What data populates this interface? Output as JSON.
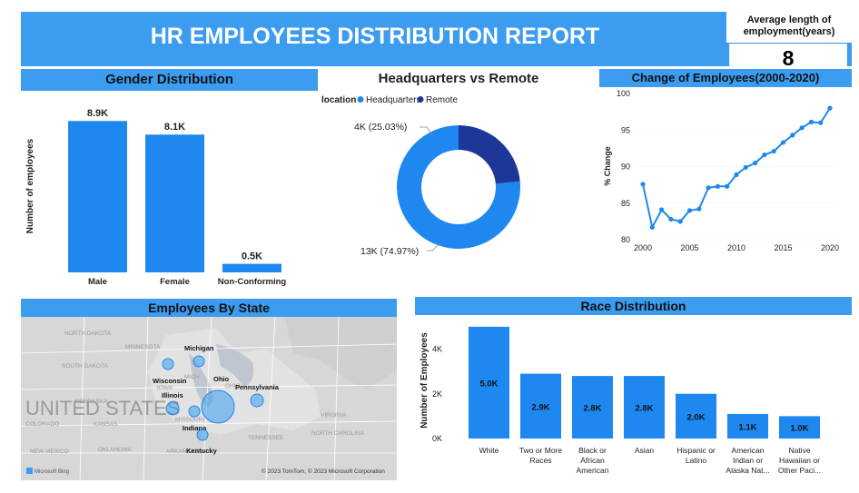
{
  "header": {
    "title": "HR EMPLOYEES DISTRIBUTION REPORT",
    "kpi_label": "Average length of employment(years)",
    "kpi_value": "8"
  },
  "colors": {
    "primary": "#3b9cf0",
    "bar": "#1e88f0",
    "dark": "#1c3797",
    "map_bg": "#d9d9d9"
  },
  "chart_data": [
    {
      "id": "gender",
      "type": "bar",
      "title": "Gender Distribution",
      "ylabel": "Number of employees",
      "categories": [
        "Male",
        "Female",
        "Non-Conforming"
      ],
      "values": [
        8.9,
        8.1,
        0.5
      ],
      "labels": [
        "8.9K",
        "8.1K",
        "0.5K"
      ],
      "ylim": [
        0,
        9.5
      ]
    },
    {
      "id": "location",
      "type": "pie",
      "title": "Headquarters vs Remote",
      "legend_title": "location",
      "categories": [
        "Headquarters",
        "Remote"
      ],
      "values": [
        13,
        4
      ],
      "labels": [
        "13K (74.97%)",
        "4K (25.03%)"
      ],
      "percents": [
        74.97,
        25.03
      ]
    },
    {
      "id": "change",
      "type": "line",
      "title": "Change of Employees(2000-2020)",
      "ylabel": "% Change",
      "x": [
        2000,
        2001,
        2002,
        2003,
        2004,
        2005,
        2006,
        2007,
        2008,
        2009,
        2010,
        2011,
        2012,
        2013,
        2014,
        2015,
        2016,
        2017,
        2018,
        2019,
        2020
      ],
      "values": [
        87.6,
        81.7,
        84.1,
        82.8,
        82.5,
        84.0,
        84.2,
        87.1,
        87.3,
        87.3,
        88.9,
        89.9,
        90.5,
        91.6,
        92.1,
        93.3,
        94.3,
        95.3,
        96.1,
        96.0,
        98.0
      ],
      "xticks": [
        2000,
        2005,
        2010,
        2015,
        2020
      ],
      "yticks": [
        80,
        85,
        90,
        95,
        100
      ],
      "ylim": [
        80,
        100
      ]
    },
    {
      "id": "race",
      "type": "bar",
      "title": "Race Distribution",
      "ylabel": "Number of Employees",
      "categories": [
        [
          "White"
        ],
        [
          "Two or More",
          "Races"
        ],
        [
          "Black or",
          "African",
          "American"
        ],
        [
          "Asian"
        ],
        [
          "Hispanic or",
          "Latino"
        ],
        [
          "American",
          "Indian or",
          "Alaska Nat..."
        ],
        [
          "Native",
          "Hawaiian or",
          "Other Paci..."
        ]
      ],
      "values": [
        5.0,
        2.9,
        2.8,
        2.8,
        2.0,
        1.1,
        1.0
      ],
      "labels": [
        "5.0K",
        "2.9K",
        "2.8K",
        "2.8K",
        "2.0K",
        "1.1K",
        "1.0K"
      ],
      "yticks": [
        "0K",
        "2K",
        "4K"
      ],
      "ylim": [
        0,
        5.2
      ]
    }
  ],
  "map": {
    "title": "Employees By State",
    "country_label": "UNITED STATES",
    "states": [
      "Michigan",
      "Wisconsin",
      "Ohio",
      "Illinois",
      "Pennsylvania",
      "Indiana",
      "Kentucky"
    ],
    "bg_labels": [
      "NORTH DAKOTA",
      "MINNESOTA",
      "SOUTH DAKOTA",
      "IOWA",
      "NEBRASKA",
      "KANSAS",
      "COLORADO",
      "MISSOURI",
      "OKLAHOMA",
      "ARKANSAS",
      "TENNESSEE",
      "NEW MEXICO",
      "MICH",
      "OHIO",
      "VIRGINIA",
      "NORTH CAROLINA"
    ],
    "attribution": "© 2023 TomTom, © 2023 Microsoft Corporation",
    "bing_label": "Microsoft Bing"
  }
}
